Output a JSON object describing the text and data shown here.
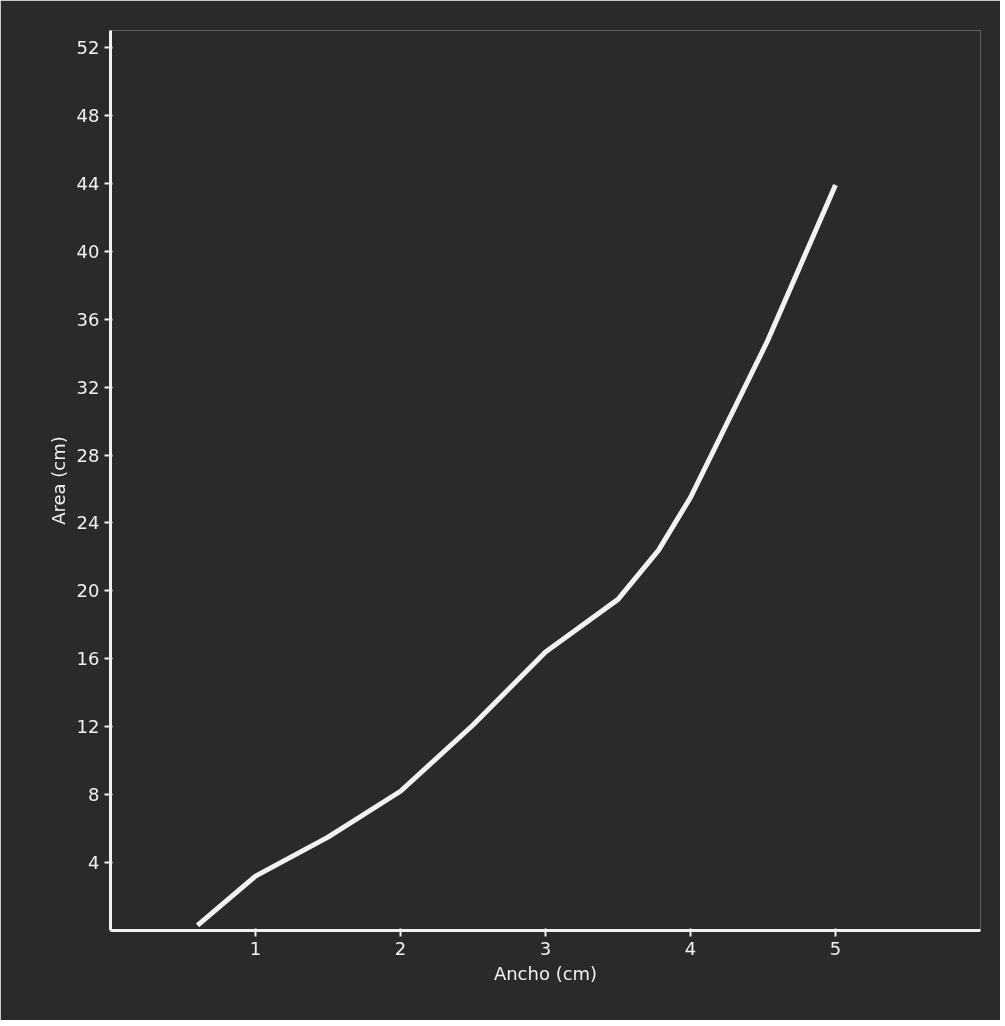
{
  "chart_data": {
    "type": "line",
    "xlabel": "Ancho (cm)",
    "ylabel": "Area (cm)",
    "xlim": [
      0,
      6
    ],
    "ylim": [
      0,
      53
    ],
    "xticks": [
      1,
      2,
      3,
      4,
      5
    ],
    "yticks": [
      4,
      8,
      12,
      16,
      20,
      24,
      28,
      32,
      36,
      40,
      44,
      48,
      52
    ],
    "grid": false,
    "marker": "none",
    "line_style": "solid",
    "series": [
      {
        "color": "#f2f2f2",
        "x": [
          0.6,
          1.0,
          1.5,
          2.0,
          2.5,
          3.0,
          3.5,
          3.78,
          4.0,
          4.53,
          5.0
        ],
        "values": [
          0.3,
          3.2,
          5.5,
          8.2,
          12.1,
          16.4,
          19.5,
          22.4,
          25.5,
          34.7,
          43.9
        ]
      }
    ]
  }
}
